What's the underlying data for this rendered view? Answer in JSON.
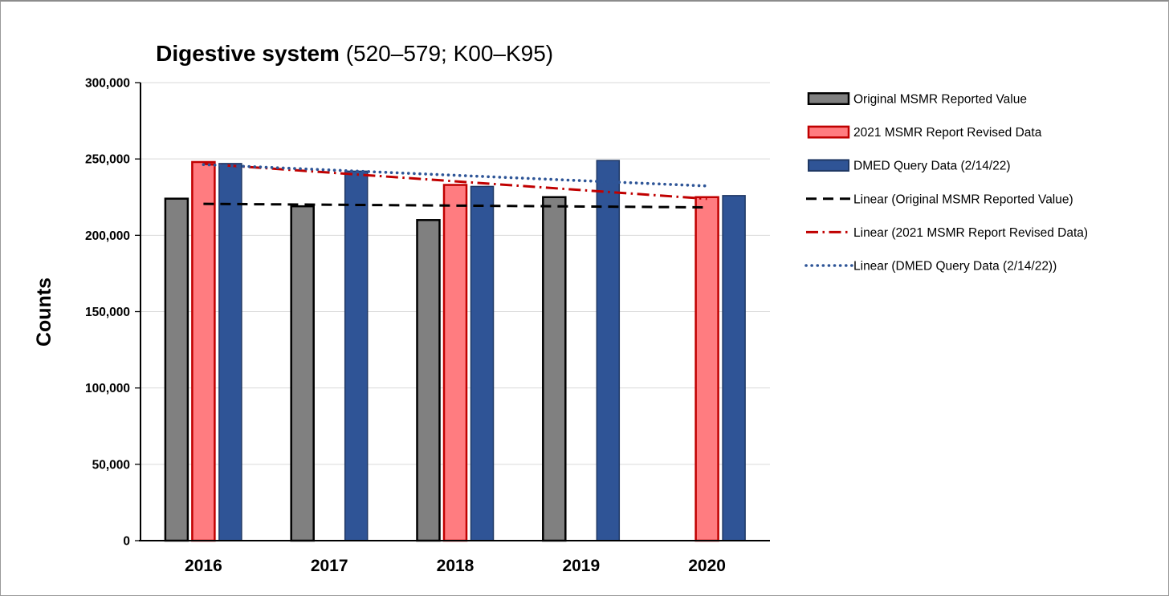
{
  "title": {
    "bold": "Digestive system",
    "rest": " (520–579; K00–K95)"
  },
  "chart_data": {
    "type": "bar",
    "title": "Digestive system (520–579; K00–K95)",
    "categories": [
      "2016",
      "2017",
      "2018",
      "2019",
      "2020"
    ],
    "series": [
      {
        "key": "original-msmr",
        "name": "Original MSMR Reported Value",
        "fill": "#808080",
        "border": "#000000",
        "values": [
          224000,
          219000,
          210000,
          225000,
          null
        ]
      },
      {
        "key": "msmr-revised",
        "name": "2021 MSMR Report Revised Data",
        "fill": "#FF7C80",
        "border": "#C00000",
        "values": [
          248000,
          null,
          233000,
          null,
          225000
        ]
      },
      {
        "key": "dmed-query",
        "name": "DMED Query Data (2/14/22)",
        "fill": "#2F5496",
        "border": "#1F3864",
        "values": [
          247000,
          242000,
          232000,
          249000,
          226000
        ]
      }
    ],
    "trendlines": [
      {
        "key": "linear-original-msmr",
        "name": "Linear (Original MSMR Reported Value)",
        "color": "#000000",
        "dash": "dashed",
        "start_value": 220600,
        "end_value": 218300
      },
      {
        "key": "linear-msmr-revised",
        "name": "Linear (2021 MSMR Report Revised Data)",
        "color": "#C00000",
        "dash": "dash-dot",
        "start_value": 246800,
        "end_value": 223900
      },
      {
        "key": "linear-dmed-query",
        "name": "Linear (DMED Query Data (2/14/22))",
        "color": "#2E5597",
        "dash": "dotted",
        "start_value": 246300,
        "end_value": 232300
      }
    ],
    "xlabel": "",
    "ylabel": "Counts",
    "ylim": [
      0,
      300000
    ],
    "yticks": [
      {
        "value": 0,
        "label": "0"
      },
      {
        "value": 50000,
        "label": "50,000"
      },
      {
        "value": 100000,
        "label": "100,000"
      },
      {
        "value": 150000,
        "label": "150,000"
      },
      {
        "value": 200000,
        "label": "200,000"
      },
      {
        "value": 250000,
        "label": "250,000"
      },
      {
        "value": 300000,
        "label": "300,000"
      }
    ],
    "grid": true,
    "gridline_color": "#D9D9D9",
    "axis_color": "#000000",
    "legend_position": "right"
  }
}
